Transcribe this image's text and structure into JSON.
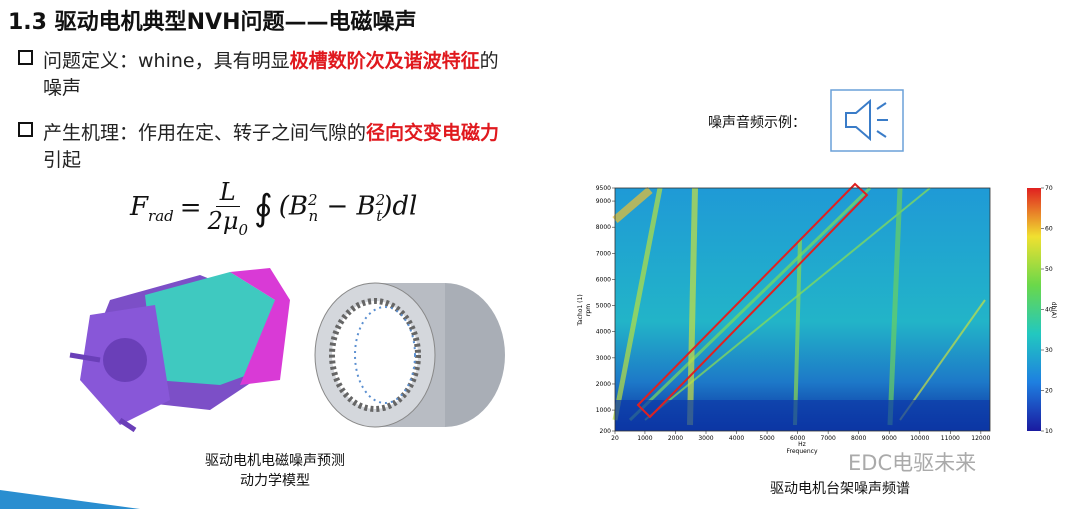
{
  "header": {
    "title": "1.3 驱动电机典型NVH问题——电磁噪声"
  },
  "bullets": [
    {
      "lead": "问题定义：whine，具有明显",
      "highlight": "极槽数阶次及谐波特征",
      "tail": "的",
      "line2": "噪声"
    },
    {
      "lead": "产生机理：作用在定、转子之间气隙的",
      "highlight": "径向交变电磁力",
      "tail": "",
      "line2": "引起"
    }
  ],
  "formula": {
    "lhs": "F",
    "lhs_sub": "rad",
    "eq": "=",
    "num": "L",
    "den": "2μ",
    "den_sub": "0",
    "integral": "∮",
    "open": "(B",
    "b1_sub": "n",
    "b1_sup": "2",
    "minus": "− B",
    "b2_sub": "t",
    "b2_sup": "2",
    "close": ")dl"
  },
  "audio": {
    "label": "噪声音频示例："
  },
  "captions": {
    "model_line1": "驱动电机电磁噪声预测",
    "model_line2": "动力学模型",
    "spectrum": "驱动电机台架噪声频谱"
  },
  "spectrogram": {
    "x_label": "Hz",
    "x_sublabel": "Frequency",
    "y_label": "Tacho1 (1)",
    "y_sublabel": "rpm",
    "colorbar_label": "db(A)",
    "xlim": [
      20,
      12300
    ],
    "xticks": [
      20,
      1000,
      2000,
      3000,
      4000,
      5000,
      6000,
      7000,
      8000,
      9000,
      10000,
      11000,
      12000
    ],
    "ylim": [
      200,
      9500
    ],
    "yticks": [
      200,
      1000,
      2000,
      3000,
      4000,
      5000,
      6000,
      7000,
      8000,
      9000,
      9500
    ],
    "clim": [
      10,
      70
    ],
    "cticks": [
      10,
      20,
      30,
      40,
      50,
      60,
      70
    ]
  },
  "watermark": "EDC电驱未来"
}
